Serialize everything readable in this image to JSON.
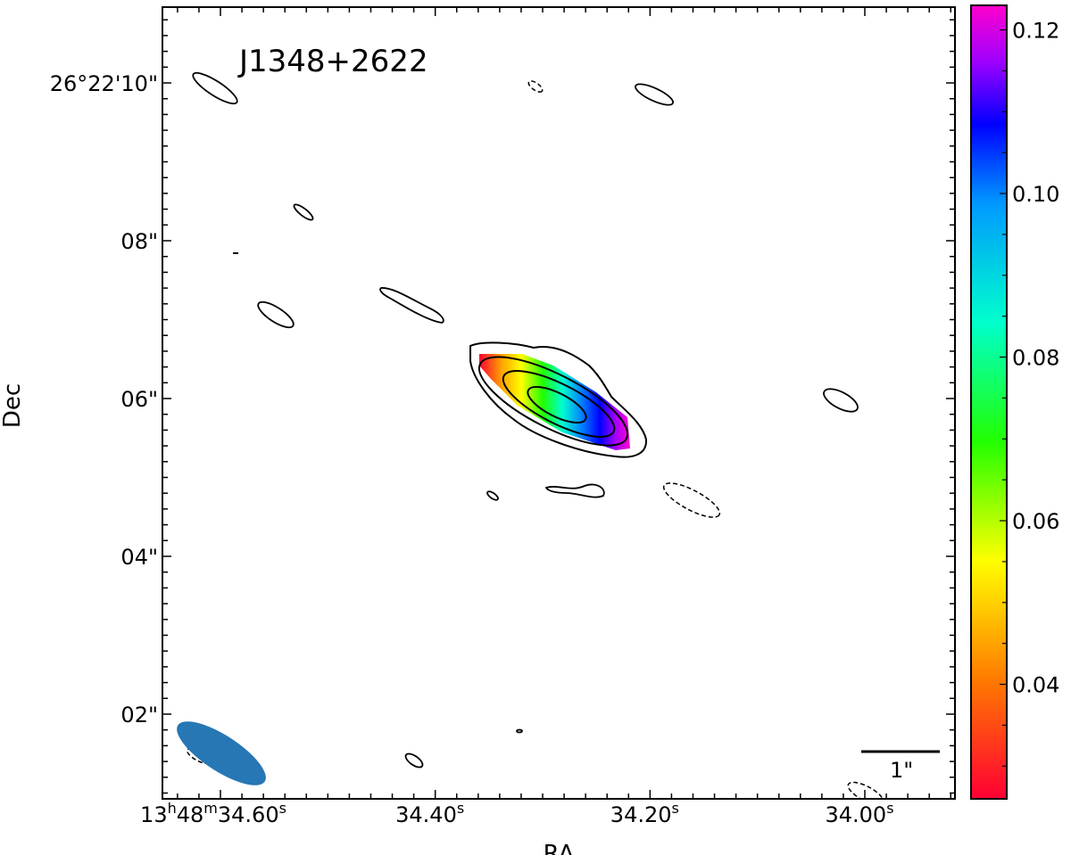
{
  "chart_data": {
    "type": "heatmap",
    "title": "J1348+2622",
    "xlabel": "RA",
    "ylabel": "Dec",
    "x_ticks": [
      {
        "value": 34.6,
        "label_main": "13",
        "sup1": "h",
        "label_mid": "48",
        "sup2": "m",
        "label_end": "34.60",
        "sup3": "s"
      },
      {
        "value": 34.4,
        "label_main": "34.40",
        "sup1": "s"
      },
      {
        "value": 34.2,
        "label_main": "34.20",
        "sup1": "s"
      },
      {
        "value": 34.0,
        "label_main": "34.00",
        "sup1": "s"
      }
    ],
    "y_ticks": [
      {
        "value": 10,
        "label": "26°22'10\""
      },
      {
        "value": 8,
        "label": "08\""
      },
      {
        "value": 6,
        "label": "06\""
      },
      {
        "value": 4,
        "label": "04\""
      },
      {
        "value": 2,
        "label": "02\""
      }
    ],
    "colorbar": {
      "min": 0.026,
      "max": 0.123,
      "ticks": [
        0.04,
        0.06,
        0.08,
        0.1,
        0.12
      ],
      "tick_labels": [
        "0.04",
        "0.06",
        "0.08",
        "0.10",
        "0.12"
      ],
      "colormap": "gist_rainbow"
    },
    "scalebar_label": "1\"",
    "grid": false,
    "contours": "solid positive levels, dashed negative levels",
    "beam_color": "#2677b4"
  }
}
